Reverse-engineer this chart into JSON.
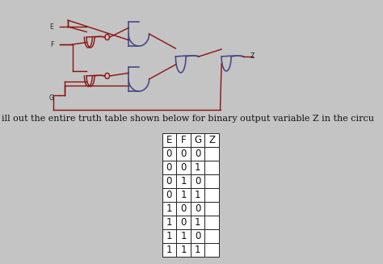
{
  "bg_color": "#c4c4c4",
  "title_text": "ill out the entire truth table shown below for binary output variable Z in the circu",
  "table_headers": [
    "E",
    "F",
    "G",
    "Z"
  ],
  "table_rows": [
    [
      "0",
      "0",
      "0",
      ""
    ],
    [
      "0",
      "0",
      "1",
      ""
    ],
    [
      "0",
      "1",
      "0",
      ""
    ],
    [
      "0",
      "1",
      "1",
      ""
    ],
    [
      "1",
      "0",
      "0",
      ""
    ],
    [
      "1",
      "0",
      "1",
      ""
    ],
    [
      "1",
      "1",
      "0",
      ""
    ],
    [
      "1",
      "1",
      "1",
      ""
    ]
  ],
  "wire_color": "#8B1010",
  "gate_color": "#4a4a88",
  "text_color": "#111111",
  "label_color": "#222222",
  "font_size_title": 8.0,
  "font_size_table": 8.5,
  "font_size_label": 5.5
}
